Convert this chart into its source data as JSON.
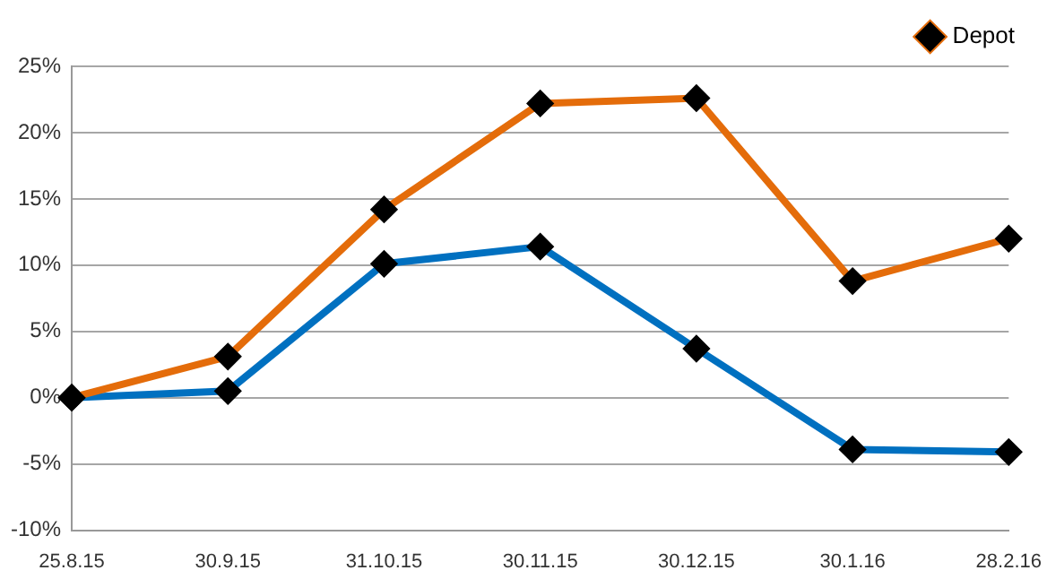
{
  "chart_data": {
    "type": "line",
    "categories": [
      "25.8.15",
      "30.9.15",
      "31.10.15",
      "30.11.15",
      "30.12.15",
      "30.1.16",
      "28.2.16"
    ],
    "series": [
      {
        "name": "Depot",
        "color": "#e46c0a",
        "values": [
          0,
          3.1,
          14.2,
          22.2,
          22.6,
          8.8,
          12.0
        ]
      },
      {
        "color": "#0070c0",
        "values": [
          0,
          0.5,
          10.1,
          11.4,
          3.7,
          -3.9,
          -4.1
        ]
      }
    ],
    "ylim": [
      -10,
      25
    ],
    "yticks": [
      {
        "value": -10,
        "label": "-10%"
      },
      {
        "value": -5,
        "label": "-5%"
      },
      {
        "value": 0,
        "label": "0%"
      },
      {
        "value": 5,
        "label": "5%"
      },
      {
        "value": 10,
        "label": "10%"
      },
      {
        "value": 15,
        "label": "15%"
      },
      {
        "value": 20,
        "label": "20%"
      },
      {
        "value": 25,
        "label": "25%"
      }
    ],
    "grid": "y",
    "legend": "top right",
    "marker": "diamond",
    "line_style": "solid"
  }
}
